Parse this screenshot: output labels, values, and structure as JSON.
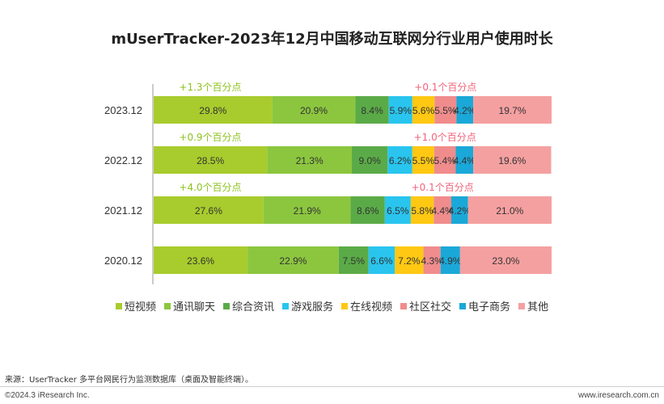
{
  "page": {
    "title": "mUserTracker-2023年12月中国移动互联网分行业用户使用时长",
    "source": "来源：UserTracker 多平台网民行为监测数据库（桌面及智能终端）。",
    "copyright": "©2024.3 iResearch Inc.",
    "site": "www.iresearch.com.cn"
  },
  "chart_data": {
    "type": "bar",
    "orientation": "horizontal",
    "stacked": true,
    "title": "mUserTracker-2023年12月中国移动互联网分行业用户使用时长",
    "categories": [
      "2023.12",
      "2022.12",
      "2021.12",
      "2020.12"
    ],
    "value_suffix": "%",
    "xlim": [
      0,
      100
    ],
    "legend_position": "bottom",
    "series": [
      {
        "name": "短视频",
        "color": "#a8cc2d",
        "values": [
          29.8,
          28.5,
          27.6,
          23.6
        ]
      },
      {
        "name": "通讯聊天",
        "color": "#8cc63f",
        "values": [
          20.9,
          21.3,
          21.9,
          22.9
        ]
      },
      {
        "name": "综合资讯",
        "color": "#5aab47",
        "values": [
          8.4,
          9.0,
          8.6,
          7.5
        ]
      },
      {
        "name": "游戏服务",
        "color": "#29c5ef",
        "values": [
          5.9,
          6.2,
          6.5,
          6.6
        ]
      },
      {
        "name": "在线视频",
        "color": "#ffc813",
        "values": [
          5.6,
          5.5,
          5.8,
          7.2
        ]
      },
      {
        "name": "社区社交",
        "color": "#f08c8c",
        "values": [
          5.5,
          5.4,
          4.4,
          4.3
        ]
      },
      {
        "name": "电子商务",
        "color": "#1aa8d8",
        "values": [
          4.2,
          4.4,
          4.2,
          4.9
        ]
      },
      {
        "name": "其他",
        "color": "#f5a0a0",
        "values": [
          19.7,
          19.6,
          21.0,
          23.0
        ]
      }
    ],
    "annotations": [
      {
        "row": 0,
        "series": 0,
        "text": "+1.3个百分点",
        "color": "#8dc21f"
      },
      {
        "row": 0,
        "series": 5,
        "text": "+0.1个百分点",
        "color": "#f0637a"
      },
      {
        "row": 1,
        "series": 0,
        "text": "+0.9个百分点",
        "color": "#8dc21f"
      },
      {
        "row": 1,
        "series": 5,
        "text": "+1.0个百分点",
        "color": "#f0637a"
      },
      {
        "row": 2,
        "series": 0,
        "text": "+4.0个百分点",
        "color": "#8dc21f"
      },
      {
        "row": 2,
        "series": 5,
        "text": "+0.1个百分点",
        "color": "#f0637a"
      }
    ]
  }
}
